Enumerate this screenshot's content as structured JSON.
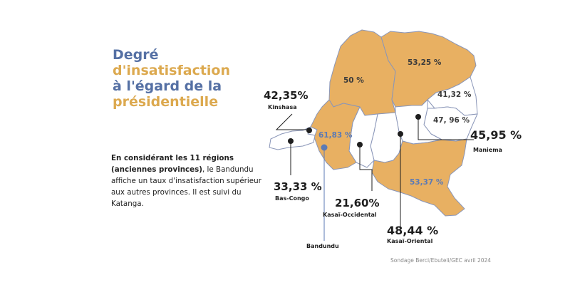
{
  "title": {
    "line1": "Degré",
    "line2": "d'insatisfaction",
    "line3": "à l'égard de la",
    "line4": "présidentielle"
  },
  "description": {
    "bold": "En considérant les 11 régions (anciennes provinces)",
    "text": ", le Bandundu  affiche un taux d'insatisfaction supérieur aux autres provinces. Il est suivi du Katanga."
  },
  "source": "Sondage Berci/Ebuteli/GEC avril 2024",
  "colors": {
    "highlight": "#e8b062",
    "base": "#ffffff",
    "outline": "#8a96b8",
    "title_blue": "#5570a4",
    "title_gold": "#dca94f"
  },
  "regions": [
    {
      "name": "Kinshasa",
      "value": "42,35%"
    },
    {
      "name": "Bas-Congo",
      "value": "33,33 %"
    },
    {
      "name": "Bandundu",
      "value": "61,83 %"
    },
    {
      "name": "Kasaï-Occidental",
      "value": "21,60%"
    },
    {
      "name": "Kasaï-Oriental",
      "value": "48,44 %"
    },
    {
      "name": "Maniema",
      "value": "45,95 %"
    },
    {
      "name": "",
      "value": "50 %"
    },
    {
      "name": "",
      "value": "53,25 %"
    },
    {
      "name": "",
      "value": "41,32 %"
    },
    {
      "name": "",
      "value": "47, 96 %"
    },
    {
      "name": "",
      "value": "53,37 %"
    }
  ]
}
